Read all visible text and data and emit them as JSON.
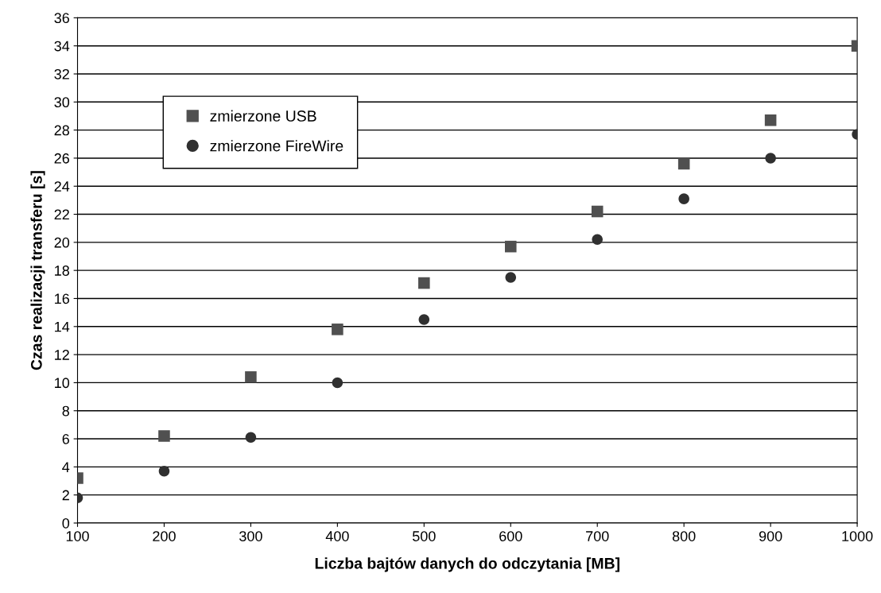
{
  "chart_data": {
    "type": "scatter",
    "xlabel": "Liczba bajtów danych do odczytania [MB]",
    "ylabel": "Czas realizacji transferu [s]",
    "x": [
      100,
      200,
      300,
      400,
      500,
      600,
      700,
      800,
      900,
      1000
    ],
    "series": [
      {
        "name": "zmierzone USB",
        "color": "#505050",
        "marker": "square",
        "values": [
          3.2,
          6.2,
          10.4,
          13.8,
          17.1,
          19.7,
          22.2,
          25.6,
          28.7,
          34.0
        ]
      },
      {
        "name": "zmierzone FireWire",
        "color": "#303030",
        "marker": "circle",
        "values": [
          1.8,
          3.7,
          6.1,
          10.0,
          14.5,
          17.5,
          20.2,
          23.1,
          26.0,
          27.7
        ]
      }
    ],
    "xlim": [
      100,
      1000
    ],
    "xticks": [
      100,
      200,
      300,
      400,
      500,
      600,
      700,
      800,
      900,
      1000
    ],
    "ylim": [
      0,
      36
    ],
    "yticks": [
      0,
      2,
      4,
      6,
      8,
      10,
      12,
      14,
      16,
      18,
      20,
      22,
      24,
      26,
      28,
      30,
      32,
      34,
      36
    ],
    "grid": "y",
    "legend": "top left"
  }
}
